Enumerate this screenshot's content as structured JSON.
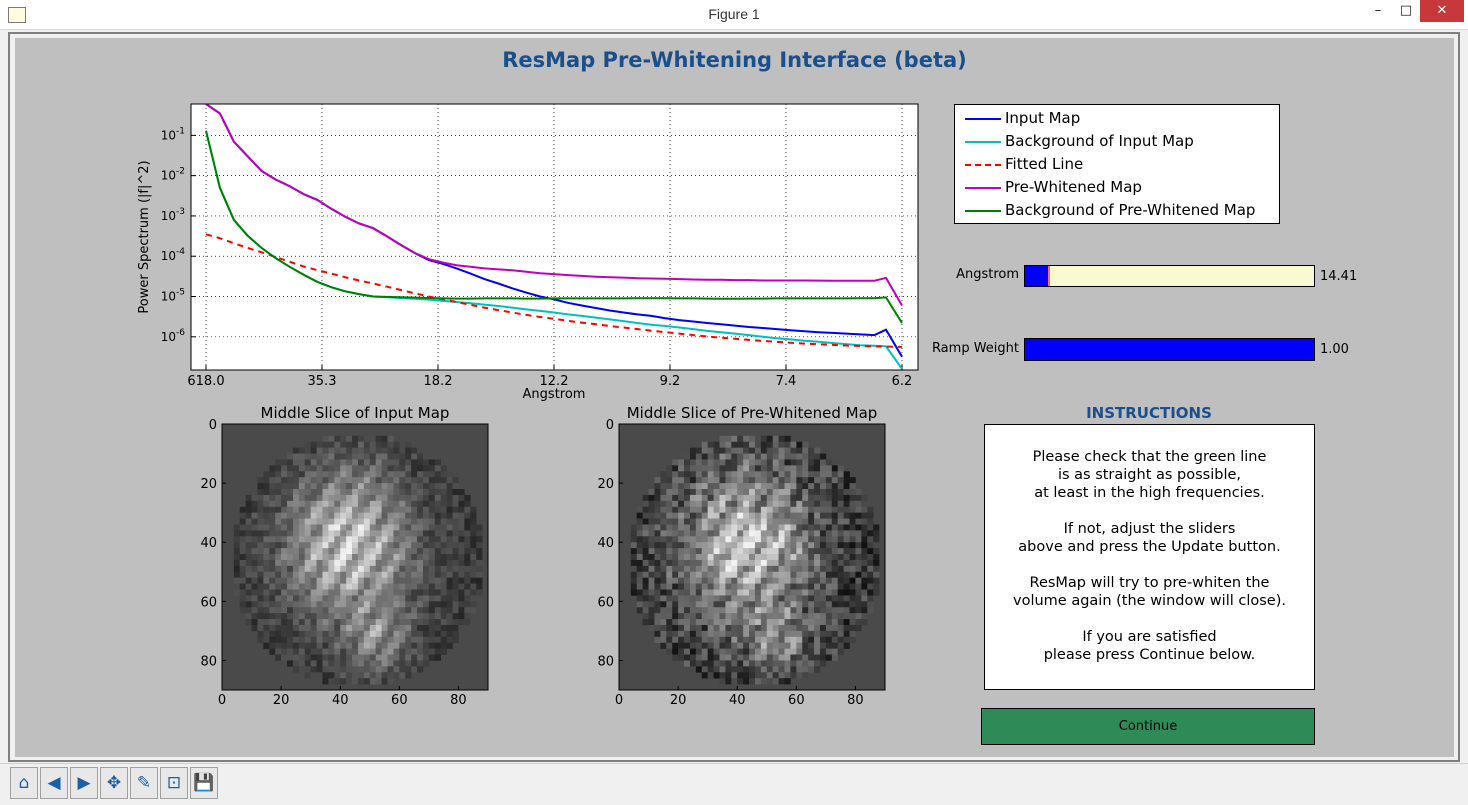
{
  "window": {
    "title": "Figure 1",
    "minimize": "–",
    "maximize": "□",
    "close": "✕"
  },
  "figure": {
    "title": "ResMap Pre-Whitening Interface (beta)"
  },
  "chart_data": [
    {
      "type": "line",
      "xlabel": "Angstrom",
      "ylabel": "Power Spectrum (|f|^2)",
      "y_scale": "log",
      "ylim": [
        1.5e-07,
        0.6
      ],
      "x_tick_labels": [
        "618.0",
        "35.3",
        "18.2",
        "12.2",
        "9.2",
        "7.4",
        "6.2"
      ],
      "y_tick_labels": [
        {
          "base": "10",
          "exp": "-1"
        },
        {
          "base": "10",
          "exp": "-2"
        },
        {
          "base": "10",
          "exp": "-3"
        },
        {
          "base": "10",
          "exp": "-4"
        },
        {
          "base": "10",
          "exp": "-5"
        },
        {
          "base": "10",
          "exp": "-6"
        }
      ],
      "grid": true,
      "legend_position": "right",
      "x": [
        0.0,
        0.02,
        0.04,
        0.06,
        0.08,
        0.1,
        0.12,
        0.14,
        0.16,
        0.18,
        0.2,
        0.22,
        0.24,
        0.26,
        0.28,
        0.3,
        0.32,
        0.34,
        0.36,
        0.38,
        0.4,
        0.42,
        0.44,
        0.46,
        0.48,
        0.5,
        0.52,
        0.54,
        0.56,
        0.58,
        0.6,
        0.62,
        0.64,
        0.66,
        0.68,
        0.7,
        0.72,
        0.74,
        0.76,
        0.78,
        0.8,
        0.82,
        0.84,
        0.86,
        0.88,
        0.9,
        0.92,
        0.94,
        0.96,
        0.977,
        1.0
      ],
      "series": [
        {
          "name": "Input Map",
          "color": "#0000ff",
          "dash": "solid",
          "values": [
            0.6,
            0.35,
            0.07,
            0.03,
            0.013,
            0.008,
            0.0055,
            0.0035,
            0.0025,
            0.0015,
            0.00095,
            0.00065,
            0.0005,
            0.00031,
            0.00019,
            0.00012,
            8e-05,
            6.5e-05,
            5e-05,
            3.7e-05,
            2.7e-05,
            2.1e-05,
            1.6e-05,
            1.25e-05,
            1e-05,
            8.5e-06,
            7e-06,
            6e-06,
            5.2e-06,
            4.5e-06,
            4e-06,
            3.6e-06,
            3.3e-06,
            2.9e-06,
            2.6e-06,
            2.4e-06,
            2.2e-06,
            2.05e-06,
            1.9e-06,
            1.75e-06,
            1.65e-06,
            1.55e-06,
            1.45e-06,
            1.38e-06,
            1.3e-06,
            1.25e-06,
            1.2e-06,
            1.15e-06,
            1.1e-06,
            1.5e-06,
            3.2e-07
          ]
        },
        {
          "name": "Background of Input Map",
          "color": "#00bfbf",
          "dash": "solid",
          "values": [
            0.13,
            0.005,
            0.0008,
            0.00032,
            0.00016,
            9e-05,
            5.5e-05,
            3.5e-05,
            2.3e-05,
            1.7e-05,
            1.35e-05,
            1.15e-05,
            1e-05,
            9.6e-06,
            9.2e-06,
            8.8e-06,
            8.4e-06,
            7.8e-06,
            7.3e-06,
            6.8e-06,
            6.3e-06,
            5.8e-06,
            5.3e-06,
            4.8e-06,
            4.4e-06,
            4e-06,
            3.6e-06,
            3.3e-06,
            3e-06,
            2.7e-06,
            2.45e-06,
            2.2e-06,
            2e-06,
            1.85e-06,
            1.7e-06,
            1.55e-06,
            1.4e-06,
            1.3e-06,
            1.2e-06,
            1.1e-06,
            1e-06,
            9.2e-07,
            8.6e-07,
            8e-07,
            7.5e-07,
            7e-07,
            6.6e-07,
            6.2e-07,
            6e-07,
            5.8e-07,
            1.6e-07
          ]
        },
        {
          "name": "Fitted Line",
          "color": "#ff0000",
          "dash": "dashed",
          "values": [
            0.00035,
            0.00028,
            0.00021,
            0.00016,
            0.000125,
            9.5e-05,
            7.3e-05,
            5.6e-05,
            4.5e-05,
            3.7e-05,
            3e-05,
            2.5e-05,
            2.1e-05,
            1.75e-05,
            1.45e-05,
            1.2e-05,
            1e-05,
            8.6e-06,
            7.3e-06,
            6.2e-06,
            5.3e-06,
            4.6e-06,
            4e-06,
            3.5e-06,
            3.1e-06,
            2.8e-06,
            2.5e-06,
            2.25e-06,
            2.05e-06,
            1.85e-06,
            1.7e-06,
            1.55e-06,
            1.42e-06,
            1.3e-06,
            1.2e-06,
            1.1e-06,
            1.02e-06,
            9.5e-07,
            8.9e-07,
            8.4e-07,
            7.9e-07,
            7.5e-07,
            7.1e-07,
            6.8e-07,
            6.5e-07,
            6.3e-07,
            6.1e-07,
            5.9e-07,
            5.8e-07,
            5.7e-07,
            5.6e-07
          ]
        },
        {
          "name": "Pre-Whitened Map",
          "color": "#bf00bf",
          "dash": "solid",
          "values": [
            0.6,
            0.35,
            0.07,
            0.03,
            0.013,
            0.008,
            0.0055,
            0.0035,
            0.0025,
            0.0015,
            0.00095,
            0.00065,
            0.0005,
            0.00031,
            0.00019,
            0.00012,
            8.5e-05,
            7e-05,
            6e-05,
            5.5e-05,
            5e-05,
            4.7e-05,
            4.5e-05,
            4.1e-05,
            3.8e-05,
            3.6e-05,
            3.4e-05,
            3.25e-05,
            3.1e-05,
            3e-05,
            2.95e-05,
            2.85e-05,
            2.8e-05,
            2.75e-05,
            2.7e-05,
            2.65e-05,
            2.6e-05,
            2.6e-05,
            2.55e-05,
            2.55e-05,
            2.5e-05,
            2.5e-05,
            2.5e-05,
            2.5e-05,
            2.48e-05,
            2.45e-05,
            2.45e-05,
            2.45e-05,
            2.45e-05,
            2.9e-05,
            6e-06
          ]
        },
        {
          "name": "Background of Pre-Whitened Map",
          "color": "#008000",
          "dash": "solid",
          "values": [
            0.13,
            0.005,
            0.0008,
            0.00032,
            0.00016,
            9e-05,
            5.5e-05,
            3.5e-05,
            2.3e-05,
            1.7e-05,
            1.35e-05,
            1.15e-05,
            1e-05,
            9.8e-06,
            9.6e-06,
            9.4e-06,
            9.2e-06,
            9e-06,
            8.9e-06,
            8.9e-06,
            9e-06,
            9e-06,
            9e-06,
            8.9e-06,
            8.9e-06,
            9e-06,
            9e-06,
            9e-06,
            9e-06,
            9e-06,
            9e-06,
            9.1e-06,
            9.1e-06,
            9.1e-06,
            9e-06,
            9e-06,
            8.9e-06,
            8.8e-06,
            8.8e-06,
            8.9e-06,
            8.9e-06,
            9e-06,
            9e-06,
            9e-06,
            9e-06,
            9e-06,
            9e-06,
            9.1e-06,
            9.1e-06,
            9.5e-06,
            2.2e-06
          ]
        }
      ]
    }
  ],
  "legend": {
    "items": [
      {
        "label": "Input Map",
        "color": "#0000ff",
        "dash": "solid"
      },
      {
        "label": "Background of Input Map",
        "color": "#00bfbf",
        "dash": "solid"
      },
      {
        "label": "Fitted Line",
        "color": "#ff0000",
        "dash": "dashed"
      },
      {
        "label": "Pre-Whitened Map",
        "color": "#bf00bf",
        "dash": "solid"
      },
      {
        "label": "Background of Pre-Whitened Map",
        "color": "#008000",
        "dash": "solid"
      }
    ]
  },
  "sliders": {
    "angstrom": {
      "label": "Angstrom",
      "value": "14.41",
      "fill_fraction": 0.08,
      "fill_color": "#0000ff",
      "track_color": "#fafad2",
      "handle_color": "#ff6b6b"
    },
    "ramp_weight": {
      "label": "Ramp Weight",
      "value": "1.00",
      "fill_fraction": 1.0,
      "fill_color": "#0000ff"
    }
  },
  "slices": {
    "input": {
      "title": "Middle Slice of Input Map"
    },
    "prewhitened": {
      "title": "Middle Slice of Pre-Whitened Map"
    },
    "x_ticks": [
      "0",
      "20",
      "40",
      "60",
      "80"
    ],
    "y_ticks": [
      "0",
      "20",
      "40",
      "60",
      "80"
    ]
  },
  "instructions": {
    "title": "INSTRUCTIONS",
    "paragraphs": [
      "Please check that the green line\nis as straight as possible,\nat least in the high frequencies.",
      "If not, adjust the sliders\nabove and press the Update button.",
      "ResMap will try to pre-whiten the\nvolume again (the window will close).",
      "If you are satisfied\nplease press Continue below."
    ]
  },
  "continue_button": {
    "label": "Continue",
    "color": "#2e8b57"
  },
  "toolbar": {
    "buttons": [
      {
        "name": "home-icon",
        "glyph": "⌂"
      },
      {
        "name": "back-icon",
        "glyph": "◀"
      },
      {
        "name": "forward-icon",
        "glyph": "▶"
      },
      {
        "name": "pan-icon",
        "glyph": "✥"
      },
      {
        "name": "configure-subplots-icon",
        "glyph": "✎"
      },
      {
        "name": "zoom-icon",
        "glyph": "⊡"
      },
      {
        "name": "save-icon",
        "glyph": "💾"
      }
    ]
  }
}
